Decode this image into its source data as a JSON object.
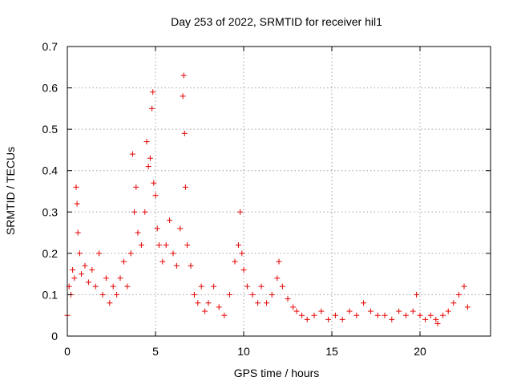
{
  "chart_data": {
    "type": "scatter",
    "title": "Day 253 of 2022, SRMTID for receiver hil1",
    "xlabel": "GPS time / hours",
    "ylabel": "SRMTID / TECUs",
    "xlim": [
      0,
      24
    ],
    "ylim": [
      0,
      0.7
    ],
    "xticks": [
      0,
      5,
      10,
      15,
      20
    ],
    "xtick_labels": [
      "0",
      "5",
      "10",
      "15",
      "20"
    ],
    "yticks": [
      0,
      0.1,
      0.2,
      0.3,
      0.4,
      0.5,
      0.6,
      0.7
    ],
    "ytick_labels": [
      "0",
      "0.1",
      "0.2",
      "0.3",
      "0.4",
      "0.5",
      "0.6",
      "0.7"
    ],
    "grid": true,
    "marker": "+",
    "color": "#e60000",
    "series": [
      {
        "name": "SRMTID",
        "x": [
          0.0,
          0.1,
          0.2,
          0.3,
          0.4,
          0.5,
          0.55,
          0.6,
          0.7,
          0.8,
          1.0,
          1.2,
          1.4,
          1.6,
          1.8,
          2.0,
          2.2,
          2.4,
          2.6,
          2.8,
          3.0,
          3.2,
          3.4,
          3.6,
          3.7,
          3.8,
          3.9,
          4.0,
          4.2,
          4.4,
          4.5,
          4.6,
          4.7,
          4.8,
          4.85,
          4.9,
          5.0,
          5.1,
          5.2,
          5.4,
          5.6,
          5.8,
          6.0,
          6.2,
          6.4,
          6.55,
          6.6,
          6.65,
          6.7,
          6.8,
          7.0,
          7.2,
          7.4,
          7.6,
          7.8,
          8.0,
          8.3,
          8.6,
          8.9,
          9.2,
          9.5,
          9.7,
          9.8,
          9.9,
          10.0,
          10.2,
          10.5,
          10.8,
          11.0,
          11.3,
          11.6,
          11.9,
          12.0,
          12.2,
          12.5,
          12.8,
          13.0,
          13.3,
          13.6,
          14.0,
          14.4,
          14.8,
          15.2,
          15.6,
          16.0,
          16.4,
          16.8,
          17.2,
          17.6,
          18.0,
          18.4,
          18.8,
          19.2,
          19.6,
          19.8,
          20.0,
          20.3,
          20.6,
          20.9,
          21.0,
          21.3,
          21.6,
          21.9,
          22.2,
          22.5,
          22.7
        ],
        "y": [
          0.05,
          0.12,
          0.1,
          0.16,
          0.14,
          0.36,
          0.32,
          0.25,
          0.2,
          0.15,
          0.17,
          0.13,
          0.16,
          0.12,
          0.2,
          0.1,
          0.14,
          0.08,
          0.12,
          0.1,
          0.14,
          0.18,
          0.12,
          0.2,
          0.44,
          0.3,
          0.36,
          0.25,
          0.22,
          0.3,
          0.47,
          0.41,
          0.43,
          0.55,
          0.59,
          0.37,
          0.34,
          0.26,
          0.22,
          0.18,
          0.22,
          0.28,
          0.2,
          0.17,
          0.26,
          0.58,
          0.63,
          0.49,
          0.36,
          0.22,
          0.17,
          0.1,
          0.08,
          0.12,
          0.06,
          0.08,
          0.12,
          0.07,
          0.05,
          0.1,
          0.18,
          0.22,
          0.3,
          0.2,
          0.16,
          0.12,
          0.1,
          0.08,
          0.12,
          0.08,
          0.1,
          0.14,
          0.18,
          0.12,
          0.09,
          0.07,
          0.06,
          0.05,
          0.04,
          0.05,
          0.06,
          0.04,
          0.05,
          0.04,
          0.06,
          0.05,
          0.08,
          0.06,
          0.05,
          0.05,
          0.04,
          0.06,
          0.05,
          0.06,
          0.1,
          0.05,
          0.04,
          0.05,
          0.04,
          0.03,
          0.05,
          0.06,
          0.08,
          0.1,
          0.12,
          0.07
        ]
      }
    ]
  }
}
